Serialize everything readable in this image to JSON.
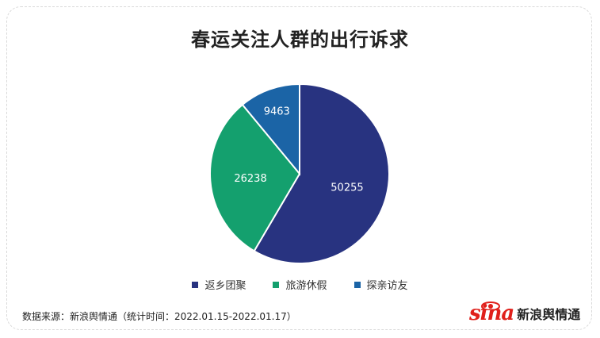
{
  "chart_data": {
    "type": "pie",
    "title": "春运关注人群的出行诉求",
    "categories": [
      "返乡团聚",
      "旅游休假",
      "探亲访友"
    ],
    "values": [
      50255,
      26238,
      9463
    ],
    "colors": [
      "#283380",
      "#14a06e",
      "#1b64a6"
    ],
    "legend_position": "bottom"
  },
  "footer": {
    "source": "数据来源：新浪舆情通（统计时间：2022.01.15-2022.01.17）",
    "logo_mark": "sina",
    "logo_text": "新浪舆情通"
  }
}
